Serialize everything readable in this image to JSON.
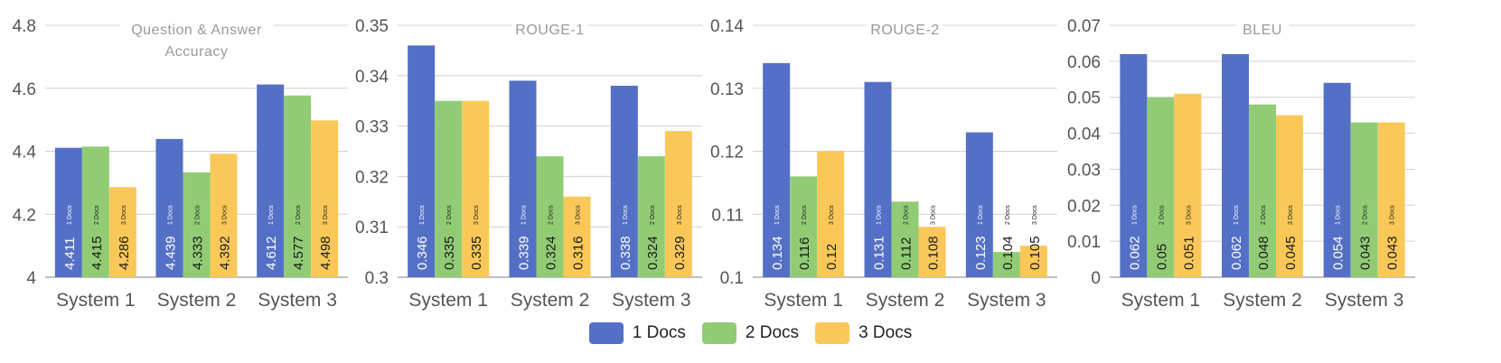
{
  "colors": {
    "docs1": "#5470c6",
    "docs2": "#91cc75",
    "docs3": "#fac858",
    "grid": "#d0d0d0",
    "axis_text": "#555555",
    "title_text": "#999999"
  },
  "legend": {
    "items": [
      {
        "label": "1 Docs",
        "color": "#5470c6"
      },
      {
        "label": "2 Docs",
        "color": "#91cc75"
      },
      {
        "label": "3 Docs",
        "color": "#fac858"
      }
    ]
  },
  "chart_data": [
    {
      "type": "bar",
      "title": "Question & Answer Accuracy",
      "title_lines": [
        "Question & Answer",
        "Accuracy"
      ],
      "categories": [
        "System 1",
        "System 2",
        "System 3"
      ],
      "ylim": [
        4,
        4.8
      ],
      "yticks": [
        "4",
        "4.2",
        "4.4",
        "4.6",
        "4.8"
      ],
      "series": [
        {
          "name": "1 Docs",
          "values": [
            4.411,
            4.439,
            4.612
          ],
          "labels": [
            "4.411",
            "4.439",
            "4.612"
          ]
        },
        {
          "name": "2 Docs",
          "values": [
            4.415,
            4.333,
            4.577
          ],
          "labels": [
            "4.415",
            "4.333",
            "4.577"
          ]
        },
        {
          "name": "3 Docs",
          "values": [
            4.286,
            4.392,
            4.498
          ],
          "labels": [
            "4.286",
            "4.392",
            "4.498"
          ]
        }
      ],
      "grid": true
    },
    {
      "type": "bar",
      "title": "ROUGE-1",
      "title_lines": [
        "ROUGE-1"
      ],
      "categories": [
        "System 1",
        "System 2",
        "System 3"
      ],
      "ylim": [
        0.3,
        0.35
      ],
      "yticks": [
        "0.3",
        "0.31",
        "0.32",
        "0.33",
        "0.34",
        "0.35"
      ],
      "series": [
        {
          "name": "1 Docs",
          "values": [
            0.346,
            0.339,
            0.338
          ],
          "labels": [
            "0.346",
            "0.339",
            "0.338"
          ]
        },
        {
          "name": "2 Docs",
          "values": [
            0.335,
            0.324,
            0.324
          ],
          "labels": [
            "0.335",
            "0.324",
            "0.324"
          ]
        },
        {
          "name": "3 Docs",
          "values": [
            0.335,
            0.316,
            0.329
          ],
          "labels": [
            "0.335",
            "0.316",
            "0.329"
          ]
        }
      ],
      "grid": true
    },
    {
      "type": "bar",
      "title": "ROUGE-2",
      "title_lines": [
        "ROUGE-2"
      ],
      "categories": [
        "System 1",
        "System 2",
        "System 3"
      ],
      "ylim": [
        0.1,
        0.14
      ],
      "yticks": [
        "0.1",
        "0.11",
        "0.12",
        "0.13",
        "0.14"
      ],
      "series": [
        {
          "name": "1 Docs",
          "values": [
            0.134,
            0.131,
            0.123
          ],
          "labels": [
            "0.134",
            "0.131",
            "0.123"
          ]
        },
        {
          "name": "2 Docs",
          "values": [
            0.116,
            0.112,
            0.104
          ],
          "labels": [
            "0.116",
            "0.112",
            "0.104"
          ]
        },
        {
          "name": "3 Docs",
          "values": [
            0.12,
            0.108,
            0.105
          ],
          "labels": [
            "0.12",
            "0.108",
            "0.105"
          ]
        }
      ],
      "grid": true
    },
    {
      "type": "bar",
      "title": "BLEU",
      "title_lines": [
        "BLEU"
      ],
      "categories": [
        "System 1",
        "System 2",
        "System 3"
      ],
      "ylim": [
        0,
        0.07
      ],
      "yticks": [
        "0",
        "0.01",
        "0.02",
        "0.03",
        "0.04",
        "0.05",
        "0.06",
        "0.07"
      ],
      "series": [
        {
          "name": "1 Docs",
          "values": [
            0.062,
            0.062,
            0.054
          ],
          "labels": [
            "0.062",
            "0.062",
            "0.054"
          ]
        },
        {
          "name": "2 Docs",
          "values": [
            0.05,
            0.048,
            0.043
          ],
          "labels": [
            "0.05",
            "0.048",
            "0.043"
          ]
        },
        {
          "name": "3 Docs",
          "values": [
            0.051,
            0.045,
            0.043
          ],
          "labels": [
            "0.051",
            "0.045",
            "0.043"
          ]
        }
      ],
      "grid": true
    }
  ]
}
